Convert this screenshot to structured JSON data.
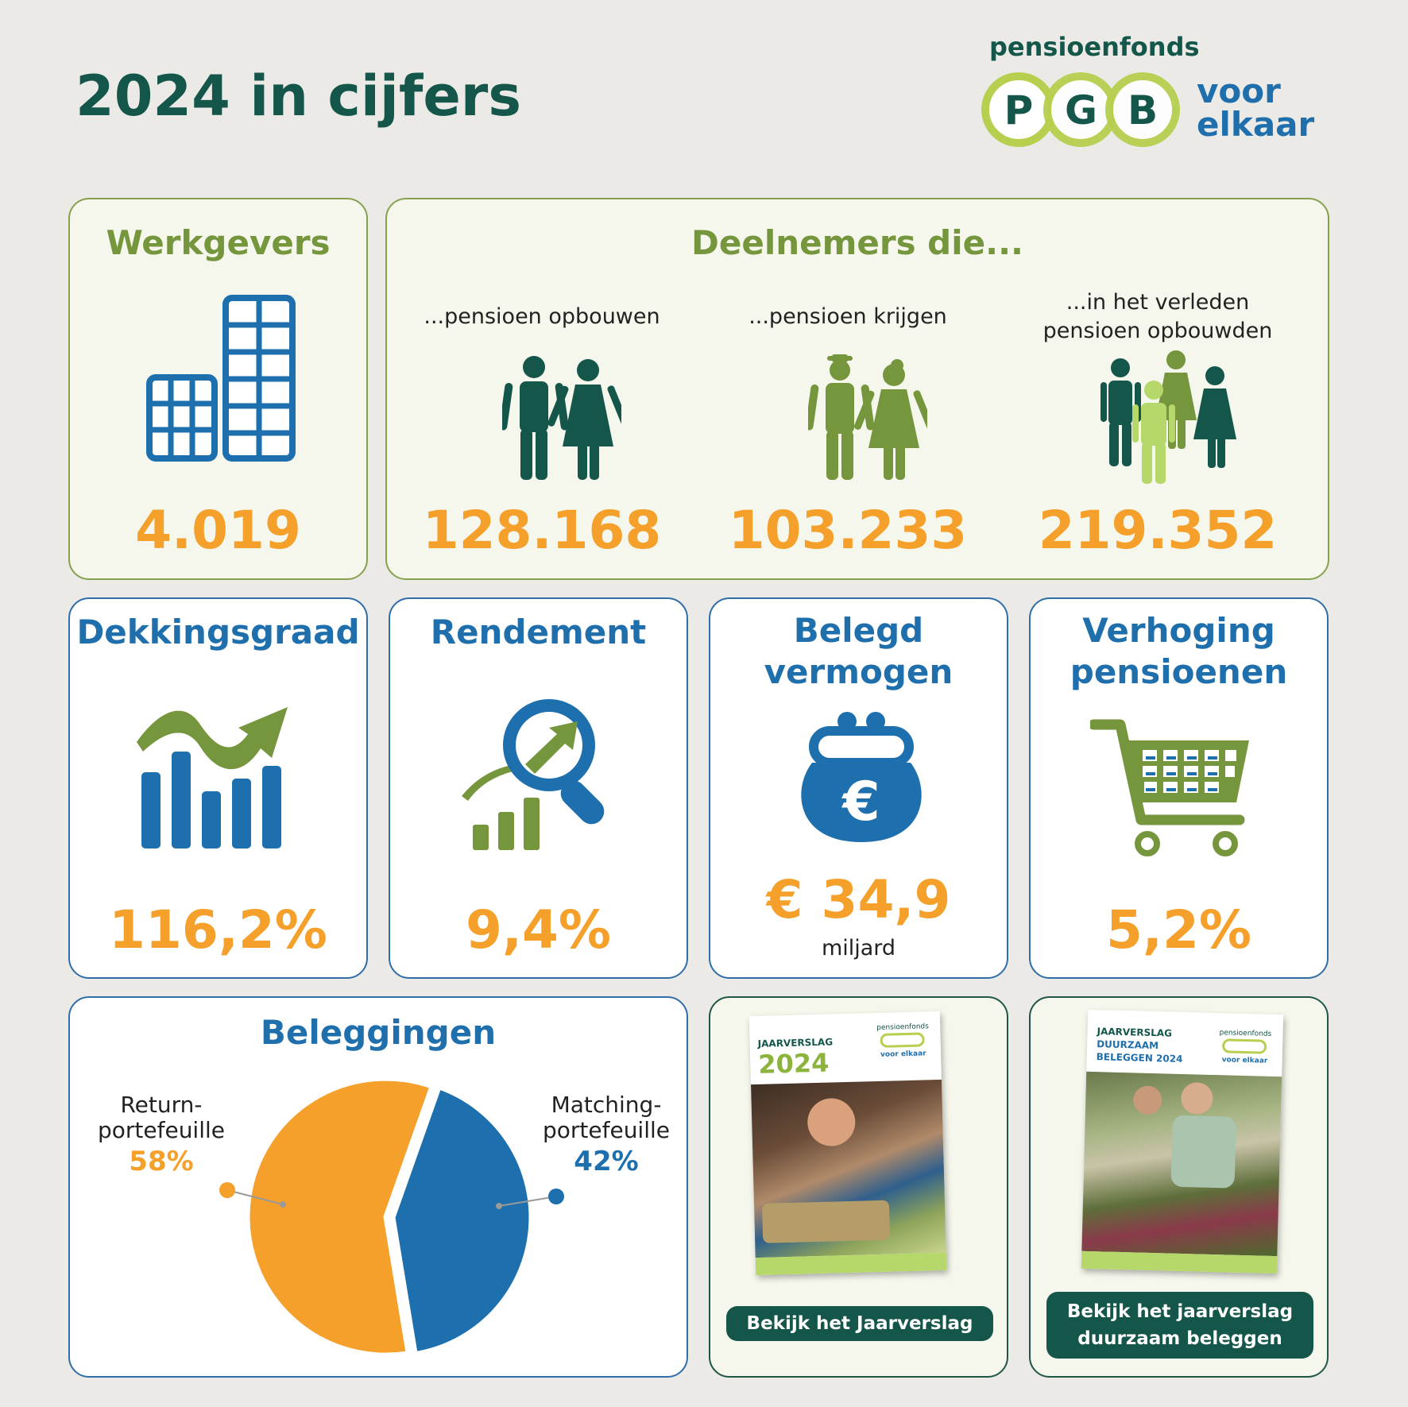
{
  "header": {
    "title": "2024 in cijfers",
    "logo": {
      "top": "pensioenfonds",
      "letters": [
        "P",
        "G",
        "B"
      ],
      "tag1": "voor",
      "tag2": "elkaar"
    }
  },
  "werkgevers": {
    "title": "Werkgevers",
    "value": "4.019",
    "icon": "buildings-icon"
  },
  "deelnemers": {
    "title": "Deelnemers die...",
    "groups": [
      {
        "label": "...pensioen opbouwen",
        "value": "128.168",
        "icon": "couple-icon"
      },
      {
        "label": "...pensioen krijgen",
        "value": "103.233",
        "icon": "elderly-couple-icon"
      },
      {
        "label_line1": "...in het verleden",
        "label_line2": "pensioen opbouwden",
        "value": "219.352",
        "icon": "family-icon"
      }
    ]
  },
  "dekkingsgraad": {
    "title": "Dekkingsgraad",
    "value": "116,2%",
    "icon": "bar-chart-trend-icon"
  },
  "rendement": {
    "title": "Rendement",
    "value": "9,4%",
    "icon": "magnifier-growth-icon"
  },
  "belegd": {
    "title_line1": "Belegd",
    "title_line2": "vermogen",
    "value": "€ 34,9",
    "unit": "miljard",
    "icon": "euro-purse-icon"
  },
  "verhoging": {
    "title_line1": "Verhoging",
    "title_line2": "pensioenen",
    "value": "5,2%",
    "icon": "shopping-cart-icon"
  },
  "beleggingen": {
    "title": "Beleggingen",
    "return": {
      "line1": "Return-",
      "line2": "portefeuille",
      "pct": "58%",
      "color": "#f4a02b"
    },
    "matching": {
      "line1": "Matching-",
      "line2": "portefeuille",
      "pct": "42%",
      "color": "#1d6fae"
    }
  },
  "chart_data": {
    "type": "pie",
    "title": "Beleggingen",
    "series": [
      {
        "name": "Return-portefeuille",
        "value": 58,
        "color": "#f4a02b"
      },
      {
        "name": "Matching-portefeuille",
        "value": 42,
        "color": "#1d6fae"
      }
    ]
  },
  "jaarverslag": {
    "cover_label": "JAARVERSLAG",
    "cover_year": "2024",
    "cover_brand": "pensioenfonds",
    "cover_tag": "voor elkaar",
    "button": "Bekijk het Jaarverslag"
  },
  "duurzaam": {
    "cover_line1": "JAARVERSLAG",
    "cover_line2": "DUURZAAM",
    "cover_line3": "BELEGGEN 2024",
    "cover_brand": "pensioenfonds",
    "cover_tag": "voor elkaar",
    "button_line1": "Bekijk het jaarverslag",
    "button_line2": "duurzaam beleggen"
  }
}
